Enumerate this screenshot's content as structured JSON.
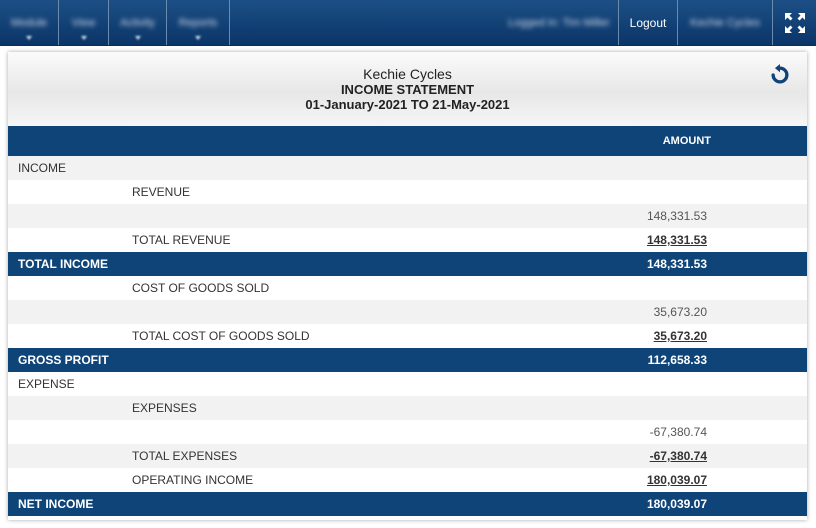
{
  "nav": {
    "items": [
      {
        "label": "Module",
        "blurred": true
      },
      {
        "label": "View",
        "blurred": true
      },
      {
        "label": "Activity",
        "blurred": true
      },
      {
        "label": "Reports",
        "blurred": true
      }
    ],
    "user_label": "Logged in: Tim Miller",
    "logout_label": "Logout",
    "company_label": "Kechie Cycles",
    "expand_icon": "expand-icon"
  },
  "report": {
    "company": "Kechie Cycles",
    "title": "INCOME STATEMENT",
    "period": "01-January-2021 TO 21-May-2021",
    "refresh_icon": "refresh-icon",
    "column_header": "AMOUNT",
    "rows": [
      {
        "label": "INCOME",
        "value": "",
        "style": "shade",
        "indent": false,
        "value_style": ""
      },
      {
        "label": "REVENUE",
        "value": "",
        "style": "white",
        "indent": true,
        "value_style": ""
      },
      {
        "label": "",
        "value": "148,331.53",
        "style": "shade",
        "indent": true,
        "value_style": "muted"
      },
      {
        "label": "TOTAL REVENUE",
        "value": "148,331.53",
        "style": "white",
        "indent": true,
        "value_style": "ul"
      },
      {
        "label": "TOTAL INCOME",
        "value": "148,331.53",
        "style": "total",
        "indent": false,
        "value_style": ""
      },
      {
        "label": "COST OF GOODS SOLD",
        "value": "",
        "style": "white",
        "indent": true,
        "value_style": ""
      },
      {
        "label": "",
        "value": "35,673.20",
        "style": "shade",
        "indent": true,
        "value_style": "muted"
      },
      {
        "label": "TOTAL COST OF GOODS SOLD",
        "value": "35,673.20",
        "style": "white",
        "indent": true,
        "value_style": "ul"
      },
      {
        "label": "GROSS PROFIT",
        "value": "112,658.33",
        "style": "total",
        "indent": false,
        "value_style": ""
      },
      {
        "label": "EXPENSE",
        "value": "",
        "style": "white",
        "indent": false,
        "value_style": ""
      },
      {
        "label": "EXPENSES",
        "value": "",
        "style": "shade",
        "indent": true,
        "value_style": ""
      },
      {
        "label": "",
        "value": "-67,380.74",
        "style": "white",
        "indent": true,
        "value_style": "muted"
      },
      {
        "label": "TOTAL EXPENSES",
        "value": "-67,380.74",
        "style": "shade",
        "indent": true,
        "value_style": "ul"
      },
      {
        "label": "OPERATING INCOME",
        "value": "180,039.07",
        "style": "white",
        "indent": true,
        "value_style": "ul"
      },
      {
        "label": "NET INCOME",
        "value": "180,039.07",
        "style": "total",
        "indent": false,
        "value_style": ""
      }
    ]
  },
  "colors": {
    "nav_bg": "#0b3567",
    "header_row": "#0e4478",
    "shade_row": "#f2f2f2"
  }
}
